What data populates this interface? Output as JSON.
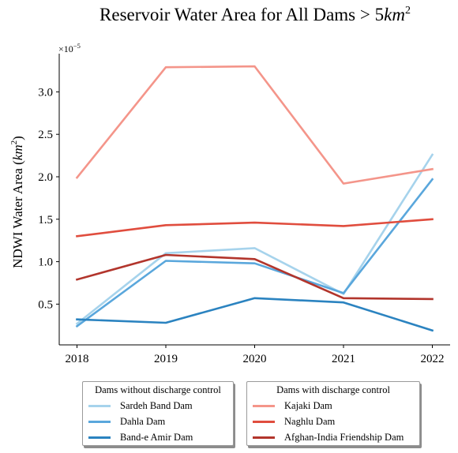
{
  "chart_data": {
    "type": "line",
    "title": "Reservoir Water Area for All Dams > 5km²",
    "title_main": "Reservoir Water Area for All Dams",
    "title_gt": ">",
    "title_num": "5",
    "title_unit": "km",
    "title_exp": "2",
    "ylabel": "NDWI Water Area (km²)",
    "ylabel_main": "NDWI Water Area (",
    "ylabel_unit": "km",
    "ylabel_exp": "2",
    "ylabel_close": ")",
    "xlabel": "",
    "y_multiplier": "×10⁻⁵",
    "y_multiplier_base": "×10",
    "y_multiplier_exp": "−5",
    "x": [
      2018,
      2019,
      2020,
      2021,
      2022
    ],
    "x_ticks": [
      "2018",
      "2019",
      "2020",
      "2021",
      "2022"
    ],
    "y_ticks": [
      "0.5",
      "1.0",
      "1.5",
      "2.0",
      "2.5",
      "3.0"
    ],
    "ylim": [
      0.02,
      3.45
    ],
    "xlim": [
      2017.8,
      2022.2
    ],
    "grid": false,
    "series": [
      {
        "name": "Sardeh Band Dam",
        "group": "no_control",
        "color": "#a6d3ec",
        "values": [
          0.27,
          1.1,
          1.16,
          0.62,
          2.26
        ]
      },
      {
        "name": "Dahla Dam",
        "group": "no_control",
        "color": "#5aa7dc",
        "values": [
          0.24,
          1.01,
          0.98,
          0.63,
          1.97
        ]
      },
      {
        "name": "Band-e Amir Dam",
        "group": "no_control",
        "color": "#2b83c0",
        "values": [
          0.32,
          0.28,
          0.57,
          0.52,
          0.19
        ]
      },
      {
        "name": "Kajaki Dam",
        "group": "control",
        "color": "#f4958a",
        "values": [
          1.99,
          3.29,
          3.3,
          1.92,
          2.09
        ]
      },
      {
        "name": "Naghlu Dam",
        "group": "control",
        "color": "#e04d3e",
        "values": [
          1.3,
          1.43,
          1.46,
          1.42,
          1.5
        ]
      },
      {
        "name": "Afghan-India Friendship Dam",
        "group": "control",
        "color": "#b2352c",
        "values": [
          0.79,
          1.08,
          1.03,
          0.57,
          0.56
        ]
      }
    ],
    "legends": [
      {
        "title": "Dams without discharge control",
        "placement": "lower-left outside"
      },
      {
        "title": "Dams with discharge control",
        "placement": "lower-right outside"
      }
    ]
  }
}
